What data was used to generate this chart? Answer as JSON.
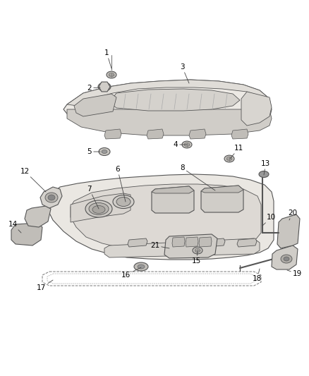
{
  "background_color": "#ffffff",
  "fig_width": 4.38,
  "fig_height": 5.33,
  "dpi": 100,
  "line_color": "#555555",
  "label_color": "#000000",
  "label_fontsize": 7.5,
  "parts_fill": "#f0ede8",
  "parts_fill2": "#e0ddd8",
  "parts_fill3": "#d0cdc8",
  "shadow_fill": "#c8c5c0",
  "dark_fill": "#b0ada8"
}
